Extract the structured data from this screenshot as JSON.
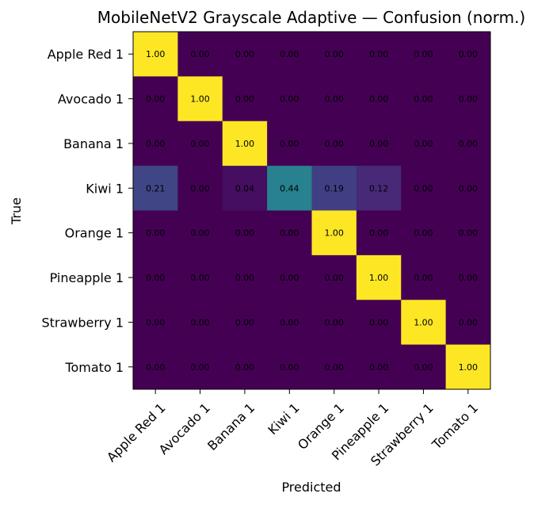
{
  "chart_data": {
    "type": "heatmap",
    "title": "MobileNetV2 Grayscale Adaptive — Confusion (norm.)",
    "xlabel": "Predicted",
    "ylabel": "True",
    "x_categories": [
      "Apple Red 1",
      "Avocado 1",
      "Banana 1",
      "Kiwi 1",
      "Orange 1",
      "Pineapple 1",
      "Strawberry 1",
      "Tomato 1"
    ],
    "y_categories": [
      "Apple Red 1",
      "Avocado 1",
      "Banana 1",
      "Kiwi 1",
      "Orange 1",
      "Pineapple 1",
      "Strawberry 1",
      "Tomato 1"
    ],
    "values": [
      [
        1.0,
        0.0,
        0.0,
        0.0,
        0.0,
        0.0,
        0.0,
        0.0
      ],
      [
        0.0,
        1.0,
        0.0,
        0.0,
        0.0,
        0.0,
        0.0,
        0.0
      ],
      [
        0.0,
        0.0,
        1.0,
        0.0,
        0.0,
        0.0,
        0.0,
        0.0
      ],
      [
        0.21,
        0.0,
        0.04,
        0.44,
        0.19,
        0.12,
        0.0,
        0.0
      ],
      [
        0.0,
        0.0,
        0.0,
        0.0,
        1.0,
        0.0,
        0.0,
        0.0
      ],
      [
        0.0,
        0.0,
        0.0,
        0.0,
        0.0,
        1.0,
        0.0,
        0.0
      ],
      [
        0.0,
        0.0,
        0.0,
        0.0,
        0.0,
        0.0,
        1.0,
        0.0
      ],
      [
        0.0,
        0.0,
        0.0,
        0.0,
        0.0,
        0.0,
        0.0,
        1.0
      ]
    ],
    "value_format": "0.00",
    "colormap": "viridis",
    "vmin": 0,
    "vmax": 1,
    "grid": false,
    "colors": {
      "low": "#440154",
      "high": "#fde725",
      "text": "#000000"
    }
  }
}
